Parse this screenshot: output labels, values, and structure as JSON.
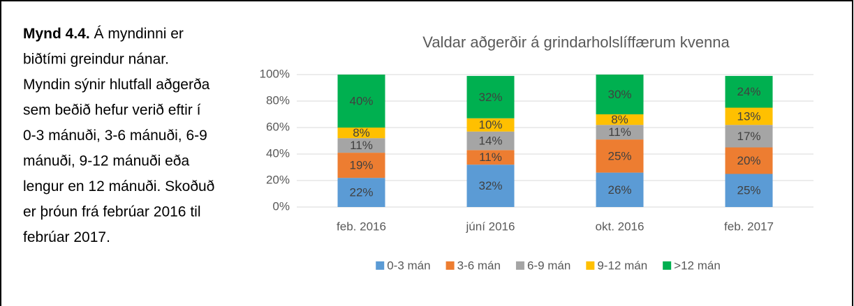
{
  "caption": {
    "label": "Mynd 4.4.",
    "lines": [
      " Á myndinni er",
      "biðtími greindur nánar.",
      "Myndin sýnir hlutfall aðgerða",
      "sem beðið hefur verið eftir í",
      "0-3 mánuði, 3-6 mánuði, 6-9",
      "mánuði, 9-12 mánuði eða",
      "lengur en 12 mánuði. Skoðuð",
      "er þróun frá febrúar 2016 til",
      "febrúar 2017."
    ]
  },
  "chart_data": {
    "type": "stacked_bar",
    "title": "Valdar aðgerðir á grindarholslíffærum kvenna",
    "categories": [
      "feb. 2016",
      "júní 2016",
      "okt. 2016",
      "feb. 2017"
    ],
    "series": [
      {
        "name": "0-3 mán",
        "color": "#5b9bd5",
        "values": [
          22,
          32,
          26,
          25
        ],
        "value_labels": [
          "22%",
          "32%",
          "26%",
          "25%"
        ]
      },
      {
        "name": "3-6 mán",
        "color": "#ed7d31",
        "values": [
          19,
          11,
          25,
          20
        ],
        "value_labels": [
          "19%",
          "11%",
          "25%",
          "20%"
        ]
      },
      {
        "name": "6-9 mán",
        "color": "#a5a5a5",
        "values": [
          11,
          14,
          11,
          17
        ],
        "value_labels": [
          "11%",
          "14%",
          "11%",
          "17%"
        ]
      },
      {
        "name": "9-12 mán",
        "color": "#ffc000",
        "values": [
          8,
          10,
          8,
          13
        ],
        "value_labels": [
          "8%",
          "10%",
          "8%",
          "13%"
        ]
      },
      {
        "name": ">12 mán",
        "color": "#00b050",
        "values": [
          40,
          32,
          30,
          24
        ],
        "value_labels": [
          "40%",
          "32%",
          "30%",
          "24%"
        ]
      }
    ],
    "ylim": [
      0,
      100
    ],
    "yticks": [
      {
        "value": 0,
        "label": "0%"
      },
      {
        "value": 20,
        "label": "20%"
      },
      {
        "value": 40,
        "label": "40%"
      },
      {
        "value": 60,
        "label": "60%"
      },
      {
        "value": 80,
        "label": "80%"
      },
      {
        "value": 100,
        "label": "100%"
      }
    ],
    "grid": true,
    "legend": "bottom"
  }
}
